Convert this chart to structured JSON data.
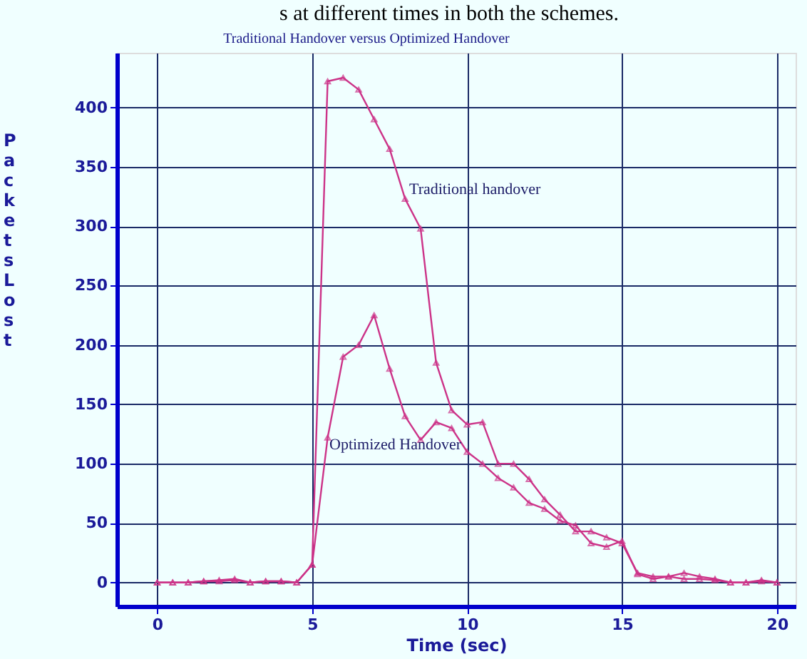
{
  "chart_data": {
    "type": "line",
    "title": "Traditional Handover versus Optimized Handover",
    "xlabel": "Time (sec)",
    "ylabel": "Packets  Lost",
    "x": [
      0,
      0.5,
      1,
      1.5,
      2,
      2.5,
      3,
      3.5,
      4,
      4.5,
      5,
      5.5,
      6,
      6.5,
      7,
      7.5,
      8,
      8.5,
      9,
      9.5,
      10,
      10.5,
      11,
      11.5,
      12,
      12.5,
      13,
      13.5,
      14,
      14.5,
      15,
      15.5,
      16,
      16.5,
      17,
      17.5,
      18,
      18.5,
      19,
      19.5,
      20
    ],
    "series": [
      {
        "color": "#cc3388",
        "values": [
          0,
          0,
          0,
          1,
          2,
          3,
          0,
          1,
          1,
          0,
          15,
          422,
          425,
          415,
          390,
          365,
          323,
          298,
          185,
          145,
          133,
          135,
          100,
          100,
          87,
          70,
          57,
          43,
          43,
          38,
          33,
          8,
          5,
          5,
          8,
          5,
          3,
          0,
          0,
          2,
          0
        ]
      },
      {
        "color": "#cc3388",
        "values": [
          0,
          0,
          0,
          1,
          1,
          2,
          0,
          1,
          1,
          0,
          15,
          122,
          190,
          200,
          225,
          180,
          140,
          120,
          135,
          130,
          110,
          100,
          88,
          80,
          67,
          62,
          52,
          48,
          33,
          30,
          35,
          7,
          3,
          5,
          3,
          3,
          2,
          0,
          0,
          1,
          0
        ]
      }
    ],
    "xlim": [
      -1.3,
      20.6
    ],
    "ylim": [
      -20,
      446
    ],
    "xticks": [
      0,
      5,
      10,
      15,
      20
    ],
    "yticks": [
      0,
      50,
      100,
      150,
      200,
      250,
      300,
      350,
      400
    ],
    "grid": true,
    "legend": false,
    "marker": "triangle",
    "line_style": "solid",
    "annotations": [
      "s at different times in both the schemes.",
      "Traditional handover",
      "Optimized Handover"
    ]
  }
}
